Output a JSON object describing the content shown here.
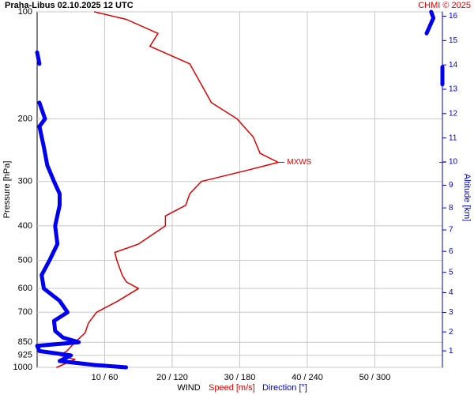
{
  "chart_data": {
    "type": "line",
    "title": "Praha-Libus   02.10.2025 12 UTC",
    "credit": "CHMI © 2025",
    "ylabel": "Pressure [hPa]",
    "y2label": "Altitude [km]",
    "xlabel": "WIND",
    "xlabel_speed": "Speed [m/s]",
    "xlabel_direction": "Direction [°]",
    "annotation": "MXWS",
    "ylog": true,
    "grid": true,
    "ylim": [
      1000,
      100
    ],
    "yticks": [
      100,
      200,
      300,
      400,
      500,
      600,
      700,
      850,
      925,
      1000
    ],
    "xlim": [
      0,
      60
    ],
    "xticks": [
      {
        "value": 10,
        "label": "10 / 60"
      },
      {
        "value": 20,
        "label": "20 / 120"
      },
      {
        "value": 30,
        "label": "30 / 180"
      },
      {
        "value": 40,
        "label": "40 / 240"
      },
      {
        "value": 50,
        "label": "50 / 300"
      }
    ],
    "y2ticks": [
      1,
      2,
      3,
      4,
      5,
      6,
      7,
      8,
      9,
      10,
      11,
      12,
      13,
      14,
      15,
      16
    ],
    "series": [
      {
        "name": "Speed [m/s]",
        "color": "#e00000",
        "scale_max": 60,
        "pressure": [
          1000,
          950,
          925,
          900,
          850,
          800,
          750,
          700,
          650,
          600,
          575,
          550,
          500,
          475,
          450,
          400,
          375,
          350,
          325,
          300,
          280,
          265,
          250,
          225,
          200,
          180,
          160,
          140,
          125,
          115,
          105,
          100
        ],
        "values": [
          2.9,
          5.6,
          3.3,
          4.4,
          5.6,
          7.1,
          7.6,
          8.8,
          12,
          15,
          13.2,
          12.6,
          11.8,
          11.5,
          15,
          19,
          19,
          22,
          22.6,
          24.3,
          30.8,
          35.7,
          33,
          32,
          29.6,
          25.8,
          24.3,
          22.6,
          16.7,
          17.9,
          13.2,
          8.5
        ]
      },
      {
        "name": "Direction [°]",
        "color": "#0000f0",
        "scale_max": 360,
        "pressure": [
          1000,
          985,
          960,
          925,
          900,
          870,
          850,
          825,
          790,
          740,
          700,
          650,
          600,
          550,
          500,
          450,
          400,
          350,
          325,
          300,
          270,
          240,
          210,
          200,
          180,
          170,
          140,
          130,
          175,
          160,
          143,
          128,
          115,
          104,
          100
        ],
        "values": [
          79,
          51,
          20,
          30,
          2,
          0,
          37,
          23,
          16,
          15,
          27,
          20,
          6,
          4,
          11,
          18,
          16,
          20,
          20,
          15,
          9,
          6,
          2,
          7,
          2,
          null,
          2,
          0,
          null,
          360,
          360,
          null,
          346,
          352,
          350
        ]
      }
    ]
  }
}
